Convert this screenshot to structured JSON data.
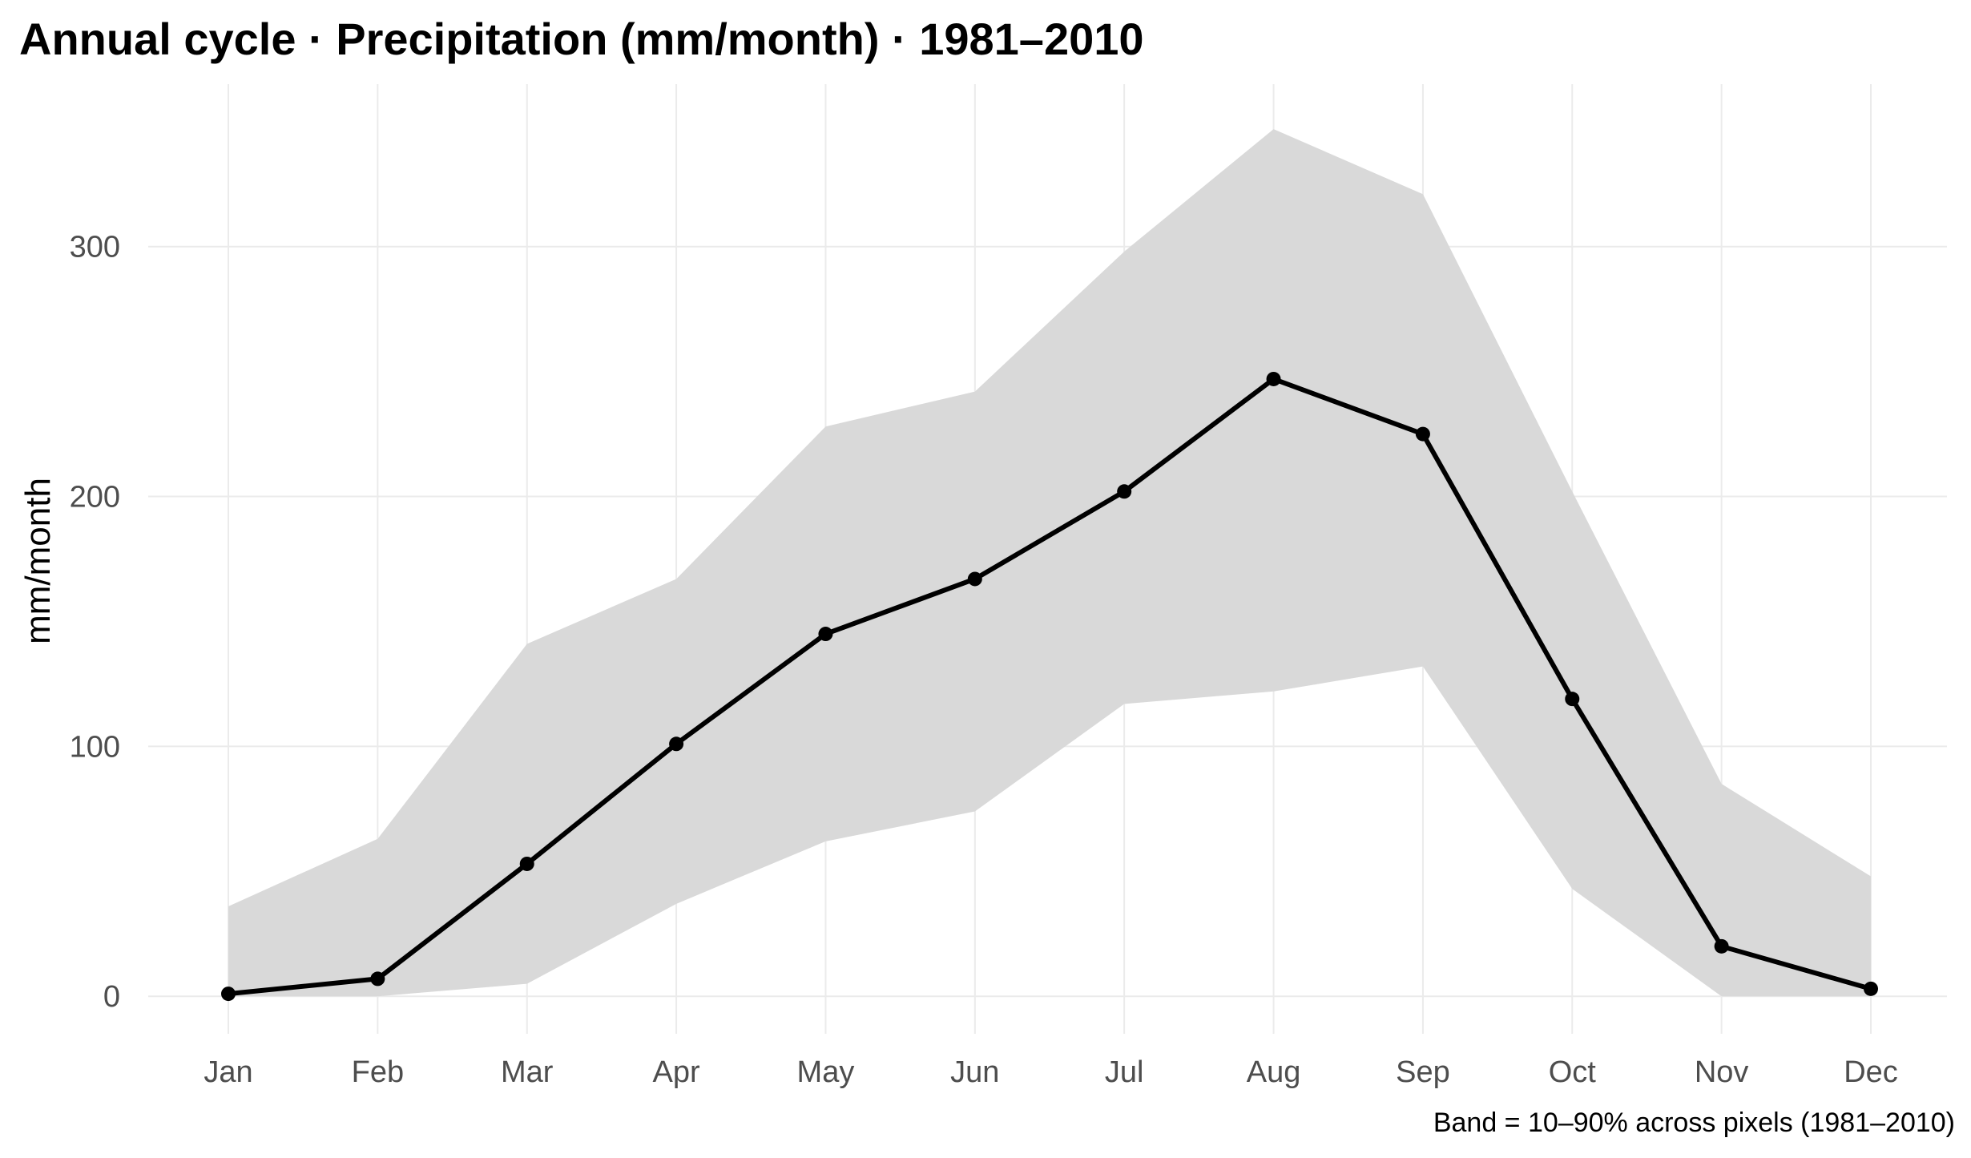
{
  "chart_data": {
    "type": "line",
    "title": "Annual cycle · Precipitation (mm/month) · 1981–2010",
    "xlabel": "",
    "ylabel": "mm/month",
    "caption": "Band = 10–90% across pixels (1981–2010)",
    "categories": [
      "Jan",
      "Feb",
      "Mar",
      "Apr",
      "May",
      "Jun",
      "Jul",
      "Aug",
      "Sep",
      "Oct",
      "Nov",
      "Dec"
    ],
    "ylim": [
      -15,
      365
    ],
    "yticks": [
      0,
      100,
      200,
      300
    ],
    "grid": true,
    "series": [
      {
        "values": [
          1,
          7,
          53,
          101,
          145,
          167,
          202,
          247,
          225,
          119,
          20,
          3
        ],
        "color": "#000000"
      }
    ],
    "band": {
      "lower": [
        0,
        0,
        5,
        37,
        62,
        74,
        117,
        122,
        132,
        43,
        0,
        0
      ],
      "upper": [
        36,
        63,
        141,
        167,
        228,
        242,
        298,
        347,
        321,
        202,
        85,
        48
      ],
      "color": "#d9d9d9"
    }
  }
}
